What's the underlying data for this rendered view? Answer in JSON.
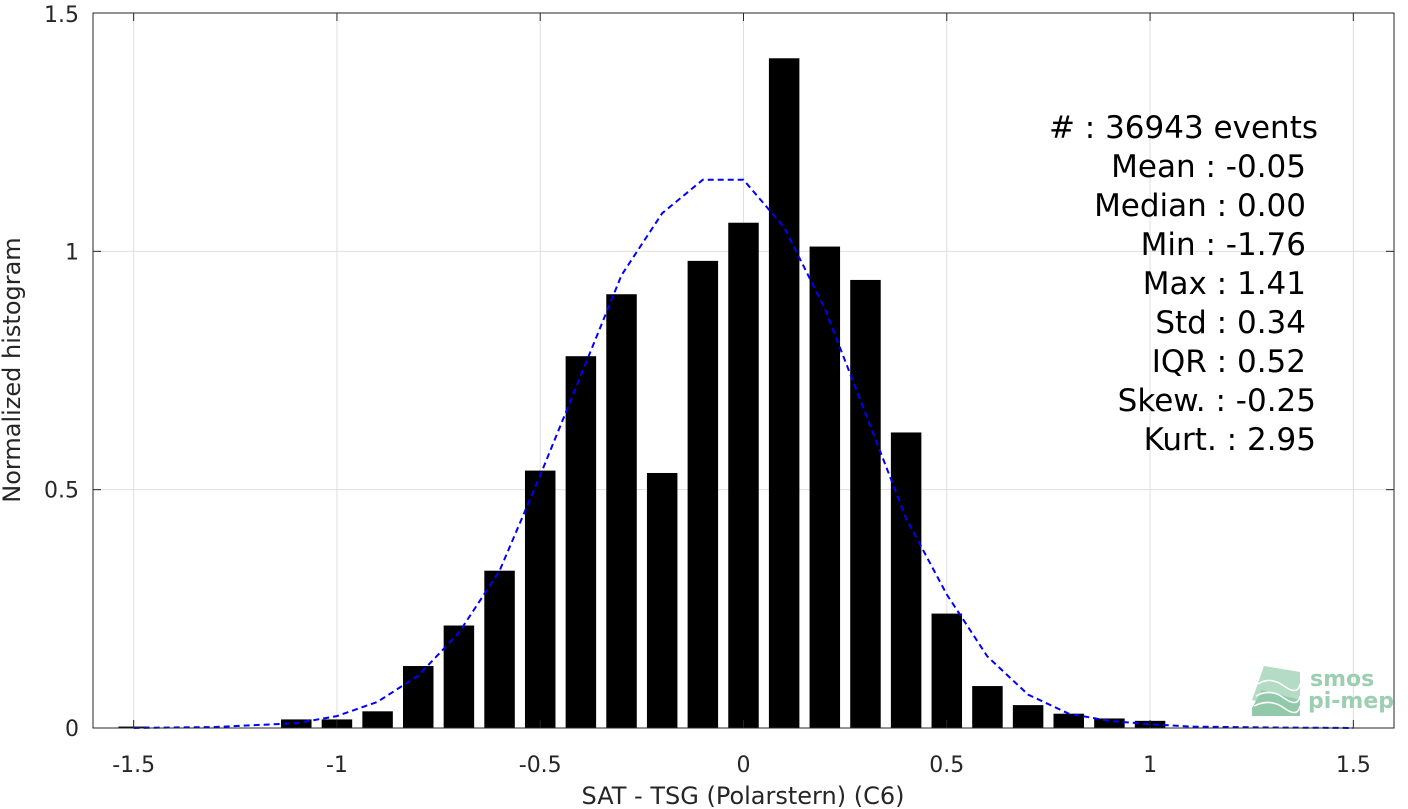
{
  "chart_data": {
    "type": "bar",
    "xlabel": "SAT - TSG (Polarstern) (C6)",
    "ylabel": "Normalized histogram",
    "xlim": [
      -1.6,
      1.6
    ],
    "ylim": [
      0,
      1.5
    ],
    "grid": true,
    "x_ticks": [
      "-1.5",
      "-1",
      "-0.5",
      "0",
      "0.5",
      "1",
      "1.5"
    ],
    "y_ticks": [
      "0",
      "0.5",
      "1",
      "1.5"
    ],
    "bar_width": 0.075,
    "bar_color": "#000000",
    "curve_color": "#0000ff",
    "bars": [
      {
        "x": -1.5,
        "value": 0.003
      },
      {
        "x": -1.1,
        "value": 0.018
      },
      {
        "x": -1.0,
        "value": 0.018
      },
      {
        "x": -0.9,
        "value": 0.035
      },
      {
        "x": -0.8,
        "value": 0.13
      },
      {
        "x": -0.7,
        "value": 0.215
      },
      {
        "x": -0.6,
        "value": 0.33
      },
      {
        "x": -0.5,
        "value": 0.54
      },
      {
        "x": -0.4,
        "value": 0.78
      },
      {
        "x": -0.3,
        "value": 0.91
      },
      {
        "x": -0.2,
        "value": 0.535
      },
      {
        "x": -0.1,
        "value": 0.98
      },
      {
        "x": 0.0,
        "value": 1.06
      },
      {
        "x": 0.1,
        "value": 1.405
      },
      {
        "x": 0.2,
        "value": 1.01
      },
      {
        "x": 0.3,
        "value": 0.94
      },
      {
        "x": 0.4,
        "value": 0.62
      },
      {
        "x": 0.5,
        "value": 0.24
      },
      {
        "x": 0.6,
        "value": 0.088
      },
      {
        "x": 0.7,
        "value": 0.048
      },
      {
        "x": 0.8,
        "value": 0.03
      },
      {
        "x": 0.9,
        "value": 0.02
      },
      {
        "x": 1.0,
        "value": 0.015
      }
    ],
    "fit_curve": {
      "style": "dashed",
      "x": [
        -1.5,
        -1.3,
        -1.1,
        -1.0,
        -0.9,
        -0.8,
        -0.7,
        -0.6,
        -0.5,
        -0.4,
        -0.3,
        -0.2,
        -0.1,
        0.0,
        0.1,
        0.2,
        0.3,
        0.4,
        0.5,
        0.6,
        0.7,
        0.8,
        0.9,
        1.0,
        1.1,
        1.3,
        1.5
      ],
      "y": [
        0.0,
        0.002,
        0.01,
        0.025,
        0.055,
        0.11,
        0.2,
        0.33,
        0.53,
        0.74,
        0.95,
        1.08,
        1.15,
        1.15,
        1.05,
        0.88,
        0.66,
        0.44,
        0.28,
        0.15,
        0.07,
        0.03,
        0.015,
        0.008,
        0.003,
        0.001,
        0.0
      ]
    },
    "stats": [
      {
        "label": "#  : 36943 events"
      },
      {
        "label": "Mean : -0.05"
      },
      {
        "label": "Median : 0.00"
      },
      {
        "label": "Min : -1.76"
      },
      {
        "label": "Max : 1.41"
      },
      {
        "label": "Std : 0.34"
      },
      {
        "label": "IQR : 0.52"
      },
      {
        "label": "Skew. : -0.25"
      },
      {
        "label": "Kurt. : 2.95"
      }
    ]
  },
  "logo": {
    "line1": "smos",
    "line2": "pi-mep"
  }
}
